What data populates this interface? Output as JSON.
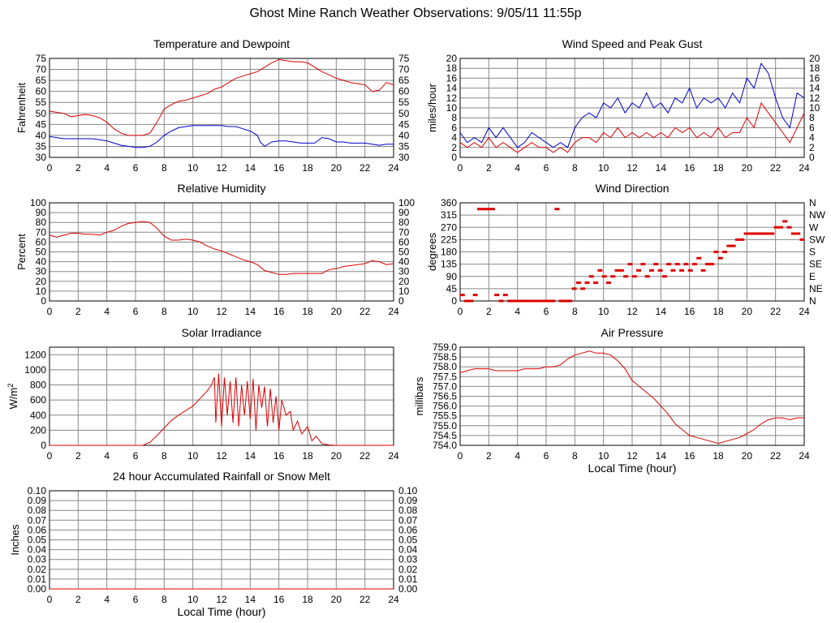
{
  "page": {
    "title": "Ghost Mine Ranch Weather Observations: 9/05/11 11:55p"
  },
  "colors": {
    "temperature": "#dd0000",
    "dewpoint": "#0000cc",
    "grid": "#888888"
  },
  "chart_data": [
    {
      "id": "temp",
      "type": "line",
      "title": "Temperature and Dewpoint",
      "xlabel": "",
      "ylabel": "Fahrenheit",
      "xlim": [
        0,
        24
      ],
      "ylim": [
        30,
        75
      ],
      "x_ticks": [
        0,
        2,
        4,
        6,
        8,
        10,
        12,
        14,
        16,
        18,
        20,
        22,
        24
      ],
      "y_ticks": [
        30,
        35,
        40,
        45,
        50,
        55,
        60,
        65,
        70,
        75
      ],
      "right_axis": true,
      "series": [
        {
          "color": "#dd0000",
          "x": [
            0,
            0.5,
            1,
            1.5,
            2,
            2.5,
            3,
            3.5,
            4,
            4.5,
            5,
            5.5,
            6,
            6.5,
            7,
            7.5,
            8,
            8.5,
            9,
            9.5,
            10,
            10.5,
            11,
            11.5,
            12,
            12.5,
            13,
            13.5,
            14,
            14.5,
            15,
            15.5,
            16,
            16.5,
            17,
            17.5,
            18,
            18.5,
            19,
            19.5,
            20,
            20.5,
            21,
            21.5,
            22,
            22.5,
            23,
            23.5,
            24
          ],
          "y": [
            51,
            50.5,
            50,
            48.5,
            49,
            49.5,
            49,
            48,
            46,
            43,
            41,
            40,
            40,
            40,
            41,
            46,
            52,
            54,
            55.5,
            56,
            57,
            58,
            59,
            61,
            62,
            64,
            66,
            67,
            68,
            69,
            71,
            73,
            74.5,
            74,
            73.5,
            73.5,
            73,
            71,
            69,
            67.5,
            66,
            65,
            64,
            63.5,
            63,
            60,
            60.5,
            64,
            63
          ]
        },
        {
          "color": "#0000cc",
          "x": [
            0,
            0.5,
            1,
            1.5,
            2,
            2.5,
            3,
            3.5,
            4,
            4.5,
            5,
            5.5,
            6,
            6.5,
            7,
            7.5,
            8,
            8.5,
            9,
            9.5,
            10,
            10.5,
            11,
            11.5,
            12,
            12.5,
            13,
            13.5,
            14,
            14.5,
            14.7,
            15,
            15.5,
            16,
            16.5,
            17,
            17.5,
            18,
            18.5,
            19,
            19.5,
            20,
            20.5,
            21,
            21.5,
            22,
            22.5,
            23,
            23.5,
            24
          ],
          "y": [
            39.5,
            39,
            38.5,
            38.5,
            38.5,
            38.5,
            38.5,
            38,
            37.5,
            36.5,
            35.5,
            35,
            34.5,
            34.5,
            35,
            37,
            40,
            42,
            43.5,
            44,
            44.5,
            44.5,
            44.5,
            44.5,
            44.5,
            44,
            44,
            43,
            42,
            40,
            37,
            35,
            37,
            37.5,
            37.5,
            37,
            36.5,
            36.5,
            36.5,
            39,
            38.5,
            37,
            37,
            36.5,
            36.5,
            36.5,
            36,
            35.5,
            36,
            36
          ]
        }
      ]
    },
    {
      "id": "wind",
      "type": "line",
      "title": "Wind Speed and Peak Gust",
      "xlabel": "",
      "ylabel": "miles/hour",
      "xlim": [
        0,
        24
      ],
      "ylim": [
        0,
        20
      ],
      "x_ticks": [
        0,
        2,
        4,
        6,
        8,
        10,
        12,
        14,
        16,
        18,
        20,
        22,
        24
      ],
      "y_ticks": [
        0,
        2,
        4,
        6,
        8,
        10,
        12,
        14,
        16,
        18,
        20
      ],
      "right_axis": true,
      "series": [
        {
          "color": "#0000cc",
          "x": [
            0,
            0.5,
            1,
            1.5,
            2,
            2.5,
            3,
            3.5,
            4,
            4.5,
            5,
            5.5,
            6,
            6.5,
            7,
            7.5,
            8,
            8.5,
            9,
            9.5,
            10,
            10.5,
            11,
            11.5,
            12,
            12.5,
            13,
            13.5,
            14,
            14.5,
            15,
            15.5,
            16,
            16.5,
            17,
            17.5,
            18,
            18.5,
            19,
            19.5,
            20,
            20.5,
            21,
            21.5,
            22,
            22.5,
            23,
            23.5,
            24
          ],
          "y": [
            5,
            3,
            4,
            3,
            6,
            4,
            6,
            4,
            2,
            3,
            5,
            4,
            3,
            2,
            3,
            2,
            6,
            8,
            9,
            8,
            11,
            10,
            12,
            9,
            11,
            10,
            13,
            10,
            11,
            9,
            12,
            11,
            14,
            10,
            12,
            11,
            12,
            10,
            13,
            11,
            16,
            14,
            19,
            17,
            12,
            8,
            6,
            13,
            12
          ]
        },
        {
          "color": "#dd0000",
          "x": [
            0,
            0.5,
            1,
            1.5,
            2,
            2.5,
            3,
            3.5,
            4,
            4.5,
            5,
            5.5,
            6,
            6.5,
            7,
            7.5,
            8,
            8.5,
            9,
            9.5,
            10,
            10.5,
            11,
            11.5,
            12,
            12.5,
            13,
            13.5,
            14,
            14.5,
            15,
            15.5,
            16,
            16.5,
            17,
            17.5,
            18,
            18.5,
            19,
            19.5,
            20,
            20.5,
            21,
            21.5,
            22,
            22.5,
            23,
            23.5,
            24
          ],
          "y": [
            3,
            2,
            3,
            2,
            4,
            2,
            3,
            2,
            1,
            2,
            3,
            2,
            2,
            1,
            2,
            1,
            3,
            4,
            4,
            3,
            5,
            4,
            6,
            4,
            5,
            4,
            5,
            4,
            5,
            4,
            6,
            5,
            6,
            4,
            5,
            4,
            6,
            4,
            5,
            5,
            8,
            6,
            11,
            9,
            7,
            5,
            3,
            6,
            9
          ]
        }
      ]
    },
    {
      "id": "rh",
      "type": "line",
      "title": "Relative Humidity",
      "xlabel": "",
      "ylabel": "Percent",
      "xlim": [
        0,
        24
      ],
      "ylim": [
        0,
        100
      ],
      "x_ticks": [
        0,
        2,
        4,
        6,
        8,
        10,
        12,
        14,
        16,
        18,
        20,
        22,
        24
      ],
      "y_ticks": [
        0,
        10,
        20,
        30,
        40,
        50,
        60,
        70,
        80,
        90,
        100
      ],
      "right_axis": true,
      "series": [
        {
          "color": "#dd0000",
          "x": [
            0,
            0.5,
            1,
            1.5,
            2,
            2.5,
            3,
            3.5,
            4,
            4.5,
            5,
            5.5,
            6,
            6.5,
            7,
            7.5,
            8,
            8.5,
            9,
            9.5,
            10,
            10.5,
            11,
            11.5,
            12,
            12.5,
            13,
            13.5,
            14,
            14.5,
            15,
            15.5,
            16,
            16.5,
            17,
            17.5,
            18,
            18.5,
            19,
            19.5,
            20,
            20.5,
            21,
            21.5,
            22,
            22.5,
            23,
            23.5,
            24
          ],
          "y": [
            67,
            65,
            67,
            69,
            69,
            68,
            68,
            67,
            70,
            72,
            76,
            79,
            80,
            81,
            80,
            74,
            66,
            62,
            62,
            63,
            62,
            60,
            56,
            53,
            51,
            48,
            45,
            42,
            40,
            37,
            31,
            29,
            27,
            27,
            28,
            28,
            28,
            28,
            28,
            32,
            33,
            35,
            36,
            37,
            38,
            41,
            40,
            37,
            38
          ]
        }
      ]
    },
    {
      "id": "dir",
      "type": "scatter",
      "title": "Wind Direction",
      "xlabel": "",
      "ylabel": "degrees",
      "xlim": [
        0,
        24
      ],
      "ylim": [
        0,
        360
      ],
      "x_ticks": [
        0,
        2,
        4,
        6,
        8,
        10,
        12,
        14,
        16,
        18,
        20,
        22,
        24
      ],
      "y_ticks": [
        0,
        45,
        90,
        135,
        180,
        225,
        270,
        315,
        360
      ],
      "right_labels": [
        "N",
        "NE",
        "E",
        "SE",
        "S",
        "SW",
        "W",
        "NW",
        "N"
      ],
      "series": [
        {
          "color": "#dd0000",
          "x": [
            0.1,
            0.4,
            0.7,
            1,
            1.3,
            1.6,
            1.9,
            2.2,
            2.5,
            2.8,
            3.1,
            3.4,
            3.7,
            4,
            4.3,
            4.6,
            4.9,
            5.2,
            5.5,
            5.8,
            6.1,
            6.4,
            6.7,
            7,
            7.3,
            7.6,
            7.9,
            8.2,
            8.5,
            8.8,
            9.1,
            9.4,
            9.7,
            10,
            10.3,
            10.6,
            10.9,
            11.2,
            11.5,
            11.8,
            12.1,
            12.4,
            12.7,
            13,
            13.3,
            13.6,
            13.9,
            14.2,
            14.5,
            14.8,
            15.1,
            15.4,
            15.7,
            16,
            16.3,
            16.6,
            16.9,
            17.2,
            17.5,
            17.8,
            18.1,
            18.4,
            18.7,
            19,
            19.3,
            19.6,
            19.9,
            20.2,
            20.5,
            20.8,
            21.1,
            21.4,
            21.7,
            22,
            22.3,
            22.6,
            22.9,
            23.2,
            23.5,
            23.8
          ],
          "y": [
            22,
            0,
            0,
            22,
            337,
            337,
            337,
            337,
            22,
            0,
            22,
            0,
            0,
            0,
            0,
            0,
            0,
            0,
            0,
            0,
            0,
            0,
            337,
            0,
            0,
            0,
            45,
            67,
            45,
            67,
            90,
            67,
            112,
            90,
            67,
            90,
            112,
            112,
            90,
            135,
            90,
            112,
            135,
            90,
            112,
            135,
            112,
            90,
            135,
            112,
            135,
            112,
            135,
            112,
            135,
            157,
            112,
            135,
            135,
            180,
            157,
            180,
            202,
            202,
            225,
            225,
            247,
            247,
            247,
            247,
            247,
            247,
            247,
            270,
            270,
            292,
            270,
            247,
            247,
            225
          ]
        }
      ]
    },
    {
      "id": "solar",
      "type": "line",
      "title": "Solar Irradiance",
      "xlabel": "",
      "ylabel": "W/m",
      "ylabel_sup": "2",
      "xlim": [
        0,
        24
      ],
      "ylim": [
        0,
        1300
      ],
      "x_ticks": [
        0,
        2,
        4,
        6,
        8,
        10,
        12,
        14,
        16,
        18,
        20,
        22,
        24
      ],
      "y_ticks": [
        0,
        200,
        400,
        600,
        800,
        1000,
        1200
      ],
      "right_axis": false,
      "series": [
        {
          "color": "#dd0000",
          "x": [
            0,
            6.5,
            7,
            7.5,
            8,
            8.5,
            9,
            9.5,
            10,
            10.5,
            11,
            11.3,
            11.5,
            11.6,
            11.8,
            12,
            12.2,
            12.4,
            12.6,
            12.8,
            13,
            13.2,
            13.4,
            13.6,
            13.8,
            14,
            14.2,
            14.4,
            14.6,
            14.8,
            15,
            15.2,
            15.4,
            15.6,
            15.8,
            16,
            16.2,
            16.5,
            16.8,
            17,
            17.3,
            17.6,
            18,
            18.3,
            18.6,
            19,
            19.5,
            20,
            24
          ],
          "y": [
            0,
            0,
            40,
            130,
            230,
            330,
            400,
            460,
            520,
            620,
            720,
            800,
            900,
            300,
            950,
            250,
            900,
            400,
            850,
            300,
            900,
            250,
            800,
            400,
            850,
            350,
            880,
            200,
            800,
            500,
            780,
            250,
            750,
            300,
            650,
            200,
            600,
            400,
            450,
            200,
            320,
            150,
            250,
            60,
            120,
            20,
            5,
            0,
            0
          ]
        }
      ]
    },
    {
      "id": "pressure",
      "type": "line",
      "title": "Air Pressure",
      "xlabel": "Local Time (hour)",
      "ylabel": "millibars",
      "xlim": [
        0,
        24
      ],
      "ylim": [
        754.0,
        759.0
      ],
      "x_ticks": [
        0,
        2,
        4,
        6,
        8,
        10,
        12,
        14,
        16,
        18,
        20,
        22,
        24
      ],
      "y_ticks": [
        "754.0",
        "754.5",
        "755.0",
        "755.5",
        "756.0",
        "756.5",
        "757.0",
        "757.5",
        "758.0",
        "758.5",
        "759.0"
      ],
      "right_axis": false,
      "series": [
        {
          "color": "#dd0000",
          "x": [
            0,
            0.5,
            1,
            1.5,
            2,
            2.5,
            3,
            3.5,
            4,
            4.5,
            5,
            5.5,
            6,
            6.5,
            7,
            7.5,
            8,
            8.5,
            9,
            9.5,
            10,
            10.5,
            11,
            11.5,
            12,
            12.5,
            13,
            13.5,
            14,
            14.5,
            15,
            15.5,
            16,
            16.5,
            17,
            17.5,
            18,
            18.5,
            19,
            19.5,
            20,
            20.5,
            21,
            21.5,
            22,
            22.5,
            23,
            23.5,
            24
          ],
          "y": [
            757.7,
            757.8,
            757.9,
            757.9,
            757.9,
            757.8,
            757.8,
            757.8,
            757.8,
            757.9,
            757.9,
            757.9,
            758.0,
            758.0,
            758.1,
            758.4,
            758.6,
            758.7,
            758.8,
            758.7,
            758.7,
            758.6,
            758.3,
            757.9,
            757.3,
            757.0,
            756.7,
            756.4,
            756.0,
            755.6,
            755.1,
            754.8,
            754.5,
            754.4,
            754.3,
            754.2,
            754.1,
            754.2,
            754.3,
            754.4,
            754.6,
            754.8,
            755.1,
            755.3,
            755.4,
            755.4,
            755.3,
            755.4,
            755.4
          ]
        }
      ]
    },
    {
      "id": "rain",
      "type": "line",
      "title": "24 hour Accumulated Rainfall or Snow Melt",
      "xlabel": "Local Time (hour)",
      "ylabel": "Inches",
      "xlim": [
        0,
        24
      ],
      "ylim": [
        0,
        0.1
      ],
      "x_ticks": [
        0,
        2,
        4,
        6,
        8,
        10,
        12,
        14,
        16,
        18,
        20,
        22,
        24
      ],
      "y_ticks": [
        "0.00",
        "0.01",
        "0.02",
        "0.03",
        "0.04",
        "0.05",
        "0.06",
        "0.07",
        "0.08",
        "0.09",
        "0.10"
      ],
      "right_axis": true,
      "series": [
        {
          "color": "#dd0000",
          "x": [
            0,
            24
          ],
          "y": [
            0,
            0
          ]
        }
      ]
    }
  ]
}
